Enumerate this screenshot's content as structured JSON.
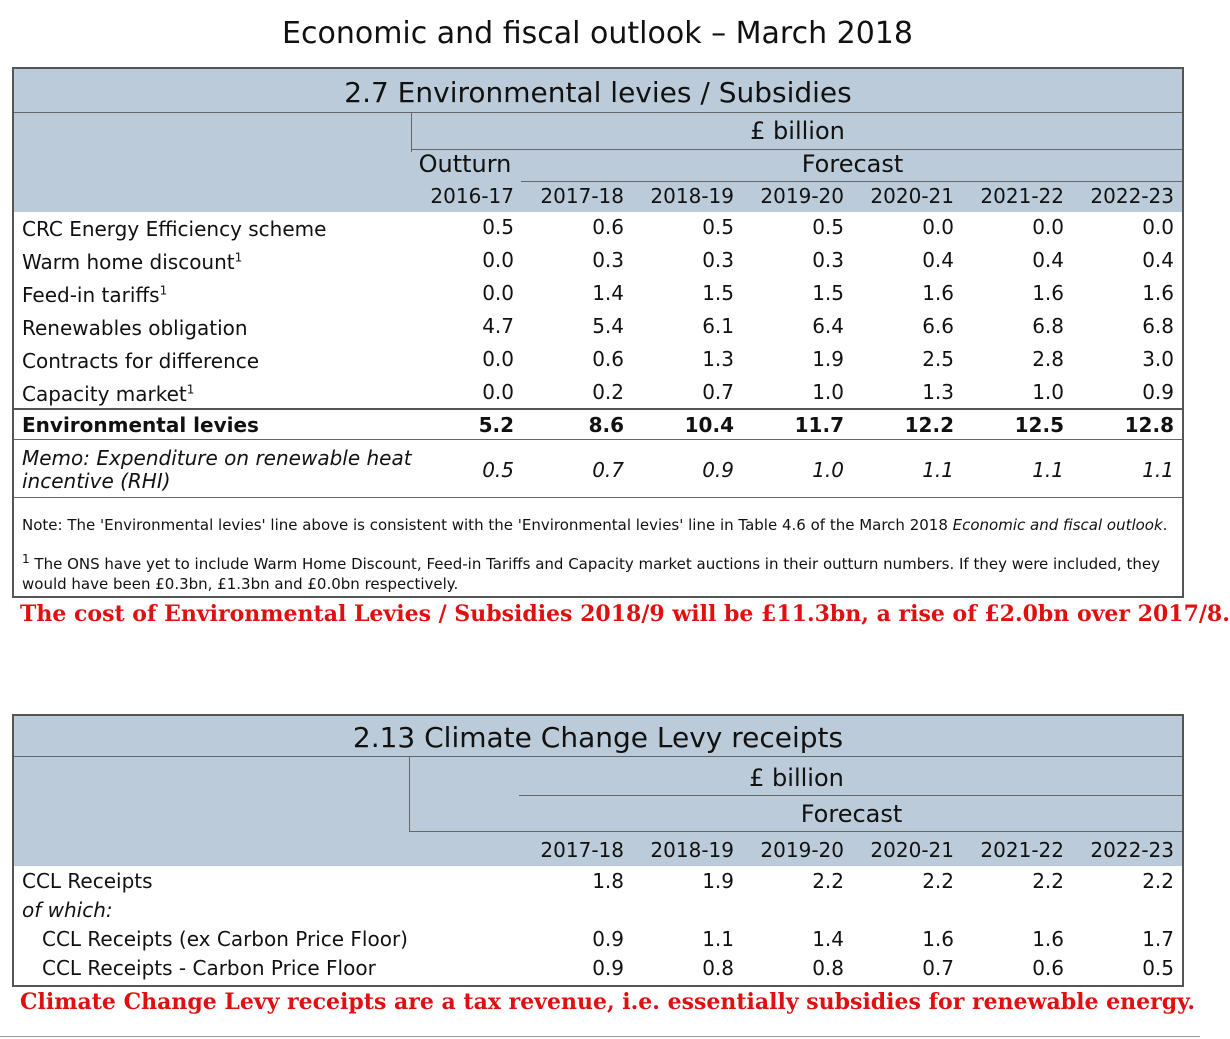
{
  "page_title": "Economic and fiscal outlook – March 2018",
  "table1": {
    "title": "2.7 Environmental levies / Subsidies",
    "unit": "£ billion",
    "outturn_label": "Outturn",
    "forecast_label": "Forecast",
    "years": [
      "2016-17",
      "2017-18",
      "2018-19",
      "2019-20",
      "2020-21",
      "2021-22",
      "2022-23"
    ],
    "rows": [
      {
        "label": "CRC Energy Efficiency scheme",
        "sup": "",
        "values": [
          "0.5",
          "0.6",
          "0.5",
          "0.5",
          "0.0",
          "0.0",
          "0.0"
        ]
      },
      {
        "label": "Warm home discount",
        "sup": "1",
        "values": [
          "0.0",
          "0.3",
          "0.3",
          "0.3",
          "0.4",
          "0.4",
          "0.4"
        ]
      },
      {
        "label": "Feed-in tariffs",
        "sup": "1",
        "values": [
          "0.0",
          "1.4",
          "1.5",
          "1.5",
          "1.6",
          "1.6",
          "1.6"
        ]
      },
      {
        "label": "Renewables obligation",
        "sup": "",
        "values": [
          "4.7",
          "5.4",
          "6.1",
          "6.4",
          "6.6",
          "6.8",
          "6.8"
        ]
      },
      {
        "label": "Contracts for difference",
        "sup": "",
        "values": [
          "0.0",
          "0.6",
          "1.3",
          "1.9",
          "2.5",
          "2.8",
          "3.0"
        ]
      },
      {
        "label": "Capacity market",
        "sup": "1",
        "values": [
          "0.0",
          "0.2",
          "0.7",
          "1.0",
          "1.3",
          "1.0",
          "0.9"
        ]
      }
    ],
    "total": {
      "label": "Environmental levies",
      "values": [
        "5.2",
        "8.6",
        "10.4",
        "11.7",
        "12.2",
        "12.5",
        "12.8"
      ]
    },
    "memo": {
      "label_line1": "Memo: Expenditure on renewable heat",
      "label_line2": "incentive (RHI)",
      "values": [
        "0.5",
        "0.7",
        "0.9",
        "1.0",
        "1.1",
        "1.1",
        "1.1"
      ]
    },
    "note_pre": "Note: The 'Environmental levies' line above is consistent with the 'Environmental levies' line in Table 4.6 of the March 2018 ",
    "note_em": "Economic and fiscal outlook",
    "note_post": ".",
    "footnote_mark": "1",
    "footnote": " The ONS have yet to include Warm Home Discount, Feed-in Tariffs and Capacity market auctions in their outturn numbers. If they were included, they would have been £0.3bn, £1.3bn and £0.0bn respectively."
  },
  "annotation1": "The cost of Environmental Levies / Subsidies 2018/9 will be £11.3bn, a rise of £2.0bn over 2017/8.",
  "table2": {
    "title": "2.13 Climate Change Levy receipts",
    "unit": "£ billion",
    "forecast_label": "Forecast",
    "years": [
      "2017-18",
      "2018-19",
      "2019-20",
      "2020-21",
      "2021-22",
      "2022-23"
    ],
    "rows": [
      {
        "label": "CCL Receipts",
        "values": [
          "1.8",
          "1.9",
          "2.2",
          "2.2",
          "2.2",
          "2.2"
        ]
      },
      {
        "label": "of which:",
        "values": []
      },
      {
        "label": "CCL Receipts (ex Carbon Price Floor)",
        "values": [
          "0.9",
          "1.1",
          "1.4",
          "1.6",
          "1.6",
          "1.7"
        ]
      },
      {
        "label": "CCL Receipts - Carbon Price Floor",
        "values": [
          "0.9",
          "0.8",
          "0.8",
          "0.7",
          "0.6",
          "0.5"
        ]
      }
    ]
  },
  "annotation2": "Climate Change Levy receipts are a tax revenue, i.e. essentially subsidies for renewable energy."
}
